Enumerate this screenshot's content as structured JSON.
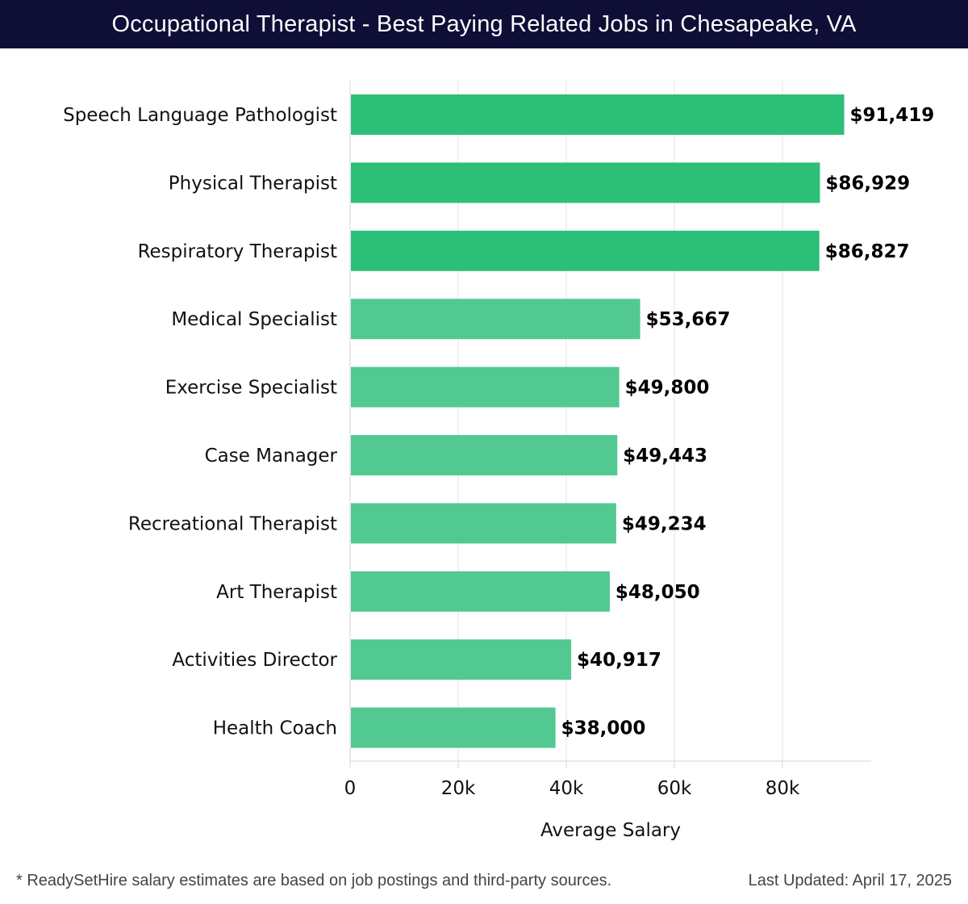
{
  "header": {
    "title": "Occupational Therapist - Best Paying Related Jobs in Chesapeake, VA"
  },
  "chart_data": {
    "type": "bar",
    "orientation": "horizontal",
    "categories": [
      "Speech Language Pathologist",
      "Physical Therapist",
      "Respiratory Therapist",
      "Medical Specialist",
      "Exercise Specialist",
      "Case Manager",
      "Recreational Therapist",
      "Art Therapist",
      "Activities Director",
      "Health Coach"
    ],
    "values": [
      91419,
      86929,
      86827,
      53667,
      49800,
      49443,
      49234,
      48050,
      40917,
      38000
    ],
    "value_labels": [
      "$91,419",
      "$86,929",
      "$86,827",
      "$53,667",
      "$49,800",
      "$49,443",
      "$49,234",
      "$48,050",
      "$40,917",
      "$38,000"
    ],
    "xlabel": "Average Salary",
    "ylabel": "",
    "xlim": [
      0,
      96000
    ],
    "x_ticks": [
      0,
      20000,
      40000,
      60000,
      80000
    ],
    "x_tick_labels": [
      "0",
      "20k",
      "40k",
      "60k",
      "80k"
    ],
    "grid": "vertical",
    "colors": {
      "top_bars": "#2dbf78",
      "other_bars": "#52c991",
      "grid": "#e3e3e3",
      "text": "#111111"
    }
  },
  "footer": {
    "note": "* ReadySetHire salary estimates are based on job postings and third-party sources.",
    "updated": "Last Updated: April 17, 2025"
  }
}
